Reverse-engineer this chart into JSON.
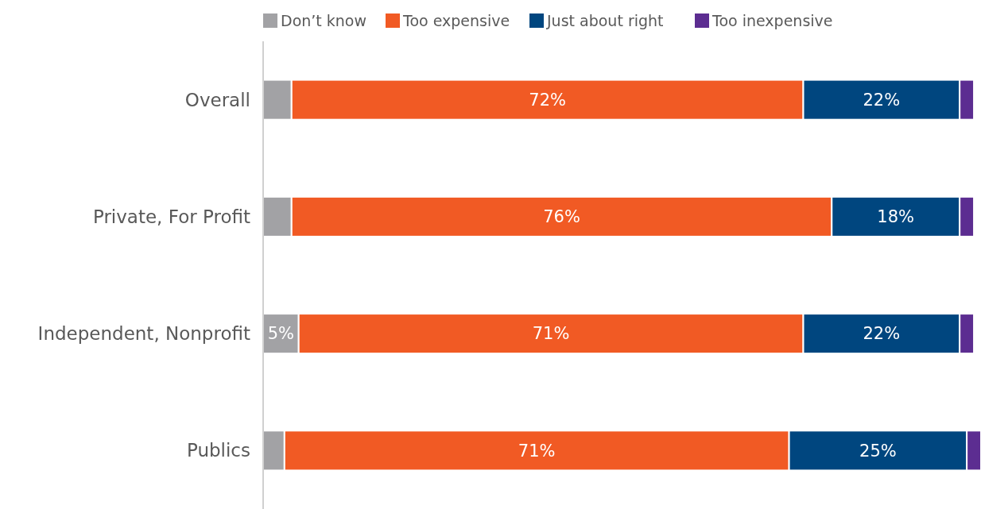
{
  "chart_data": {
    "type": "bar",
    "orientation": "horizontal",
    "stacked": true,
    "legend": "top",
    "categories": [
      "Overall",
      "Private, For Profit",
      "Independent, Nonprofit",
      "Publics"
    ],
    "series": [
      {
        "name": "Don’t know",
        "color": "#a2a2a5",
        "values": [
          4,
          4,
          5,
          3
        ],
        "value_labels": [
          null,
          null,
          "5%",
          null
        ]
      },
      {
        "name": "Too expensive",
        "color": "#f15a24",
        "values": [
          72,
          76,
          71,
          71
        ],
        "value_labels": [
          "72%",
          "76%",
          "71%",
          "71%"
        ]
      },
      {
        "name": "Just about right",
        "color": "#00467f",
        "values": [
          22,
          18,
          22,
          25
        ],
        "value_labels": [
          "22%",
          "18%",
          "22%",
          "25%"
        ]
      },
      {
        "name": "Too inexpensive",
        "color": "#5c2d91",
        "values": [
          2,
          2,
          2,
          2
        ],
        "value_labels": [
          null,
          null,
          null,
          null
        ]
      }
    ]
  }
}
